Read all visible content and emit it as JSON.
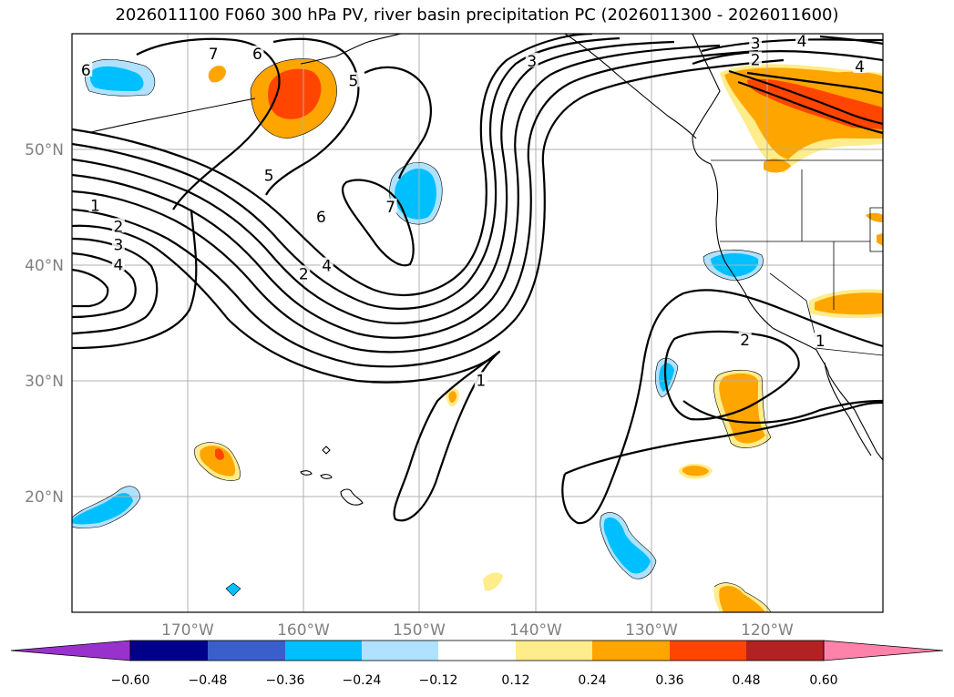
{
  "title": "2026011100 F060 300 hPa PV, river basin precipitation PC (2026011300 - 2026011600)",
  "map": {
    "extent": {
      "lon_min": -180,
      "lon_max": -110,
      "lat_min": 10,
      "lat_max": 60
    },
    "gridlines": true,
    "lat_ticks": [
      {
        "value": 20,
        "label": "20°N"
      },
      {
        "value": 30,
        "label": "30°N"
      },
      {
        "value": 40,
        "label": "40°N"
      },
      {
        "value": 50,
        "label": "50°N"
      }
    ],
    "lon_ticks": [
      {
        "value": -170,
        "label": "170°W"
      },
      {
        "value": -160,
        "label": "160°W"
      },
      {
        "value": -150,
        "label": "150°W"
      },
      {
        "value": -140,
        "label": "140°W"
      },
      {
        "value": -130,
        "label": "130°W"
      },
      {
        "value": -120,
        "label": "120°W"
      }
    ]
  },
  "colorbar": {
    "levels": [
      "−0.60",
      "−0.48",
      "−0.36",
      "−0.24",
      "−0.12",
      "0.12",
      "0.24",
      "0.36",
      "0.48",
      "0.60"
    ],
    "colors": [
      "#9932cc",
      "#00008b",
      "#3a5fcd",
      "#00bfff",
      "#b0e2ff",
      "#ffffff",
      "#ffec8b",
      "#ffa500",
      "#ff4500",
      "#b22222",
      "#ff82ab"
    ],
    "extend": "both"
  },
  "pv_contour_labels": [
    {
      "text": "1",
      "lon": -178.0,
      "lat": 45.0
    },
    {
      "text": "2",
      "lon": -176.0,
      "lat": 43.2
    },
    {
      "text": "3",
      "lon": -176.0,
      "lat": 41.6
    },
    {
      "text": "4",
      "lon": -176.0,
      "lat": 39.9
    },
    {
      "text": "5",
      "lon": -163.0,
      "lat": 47.6
    },
    {
      "text": "6",
      "lon": -158.5,
      "lat": 44.0
    },
    {
      "text": "2",
      "lon": -160.0,
      "lat": 39.1
    },
    {
      "text": "4",
      "lon": -158.0,
      "lat": 39.8
    },
    {
      "text": "7",
      "lon": -152.5,
      "lat": 44.9
    },
    {
      "text": "1",
      "lon": -144.7,
      "lat": 29.9
    },
    {
      "text": "3",
      "lon": -140.3,
      "lat": 57.5
    },
    {
      "text": "5",
      "lon": -155.7,
      "lat": 55.8
    },
    {
      "text": "6",
      "lon": -164.0,
      "lat": 58.1
    },
    {
      "text": "7",
      "lon": -167.8,
      "lat": 58.1
    },
    {
      "text": "3",
      "lon": -121.0,
      "lat": 59.0
    },
    {
      "text": "4",
      "lon": -117.0,
      "lat": 59.2
    },
    {
      "text": "2",
      "lon": -121.0,
      "lat": 57.6
    },
    {
      "text": "4",
      "lon": -112.0,
      "lat": 57.0
    },
    {
      "text": "2",
      "lon": -121.9,
      "lat": 33.4
    },
    {
      "text": "1",
      "lon": -115.4,
      "lat": 33.3
    },
    {
      "text": "6",
      "lon": -178.8,
      "lat": 56.7
    }
  ],
  "precip_pc_regions_legend": "river basin precipitation PC"
}
